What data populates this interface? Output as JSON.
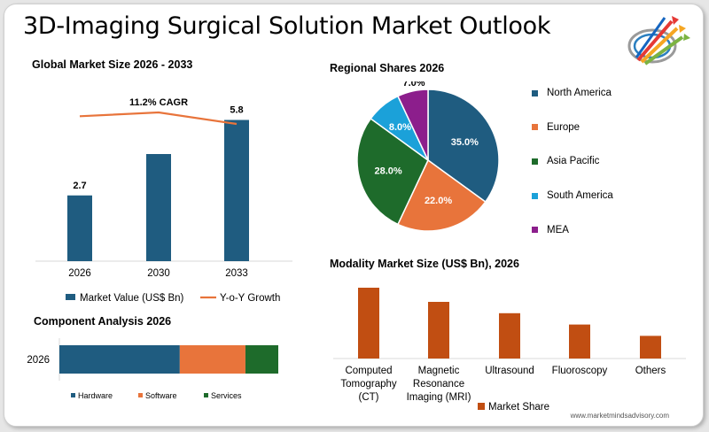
{
  "title": "3D-Imaging Surgical Solution Market Outlook",
  "footer": "www.marketmindsadvisory.com",
  "colors": {
    "navy": "#1f5c80",
    "orange": "#e8743b",
    "green": "#1e6b2b",
    "lightblue": "#1ba1d9",
    "purple": "#8c1e8c",
    "rust": "#c14e12"
  },
  "chart_data": [
    {
      "type": "bar",
      "title": "Global Market Size 2026 - 2033",
      "categories": [
        "2026",
        "2030",
        "2033"
      ],
      "series": [
        {
          "name": "Market Value (US$ Bn)",
          "values": [
            2.7,
            4.4,
            5.8
          ],
          "value_labels": [
            "2.7",
            "",
            "5.8"
          ]
        },
        {
          "name": "Y-o-Y Growth",
          "type": "line",
          "values": [
            11.0,
            11.3,
            10.4
          ]
        }
      ],
      "annotation": "11.2% CAGR"
    },
    {
      "type": "pie",
      "title": "Regional Shares 2026",
      "labels": [
        "North America",
        "Europe",
        "Asia Pacific",
        "South America",
        "MEA"
      ],
      "values": [
        35.0,
        22.0,
        28.0,
        8.0,
        7.0
      ],
      "value_labels": [
        "35.0%",
        "22.0%",
        "28.0%",
        "8.0%",
        "7.0%"
      ],
      "legend": "right"
    },
    {
      "type": "bar",
      "orientation": "horizontal",
      "stacked": true,
      "title": "Component Analysis 2026",
      "categories": [
        "2026"
      ],
      "series": [
        {
          "name": "Hardware",
          "values": [
            55
          ]
        },
        {
          "name": "Software",
          "values": [
            30
          ]
        },
        {
          "name": "Services",
          "values": [
            15
          ]
        }
      ],
      "legend": "bottom"
    },
    {
      "type": "bar",
      "title": "Modality Market Size (US$ Bn), 2026",
      "categories": [
        [
          "Computed",
          "Tomography",
          "(CT)"
        ],
        [
          "Magnetic",
          "Resonance",
          "Imaging (MRI)"
        ],
        [
          "Ultrasound"
        ],
        [
          "Fluoroscopy"
        ],
        [
          "Others"
        ]
      ],
      "series": [
        {
          "name": "Market Share",
          "values": [
            2.5,
            2.0,
            1.6,
            1.2,
            0.8
          ]
        }
      ],
      "legend": "bottom"
    }
  ]
}
